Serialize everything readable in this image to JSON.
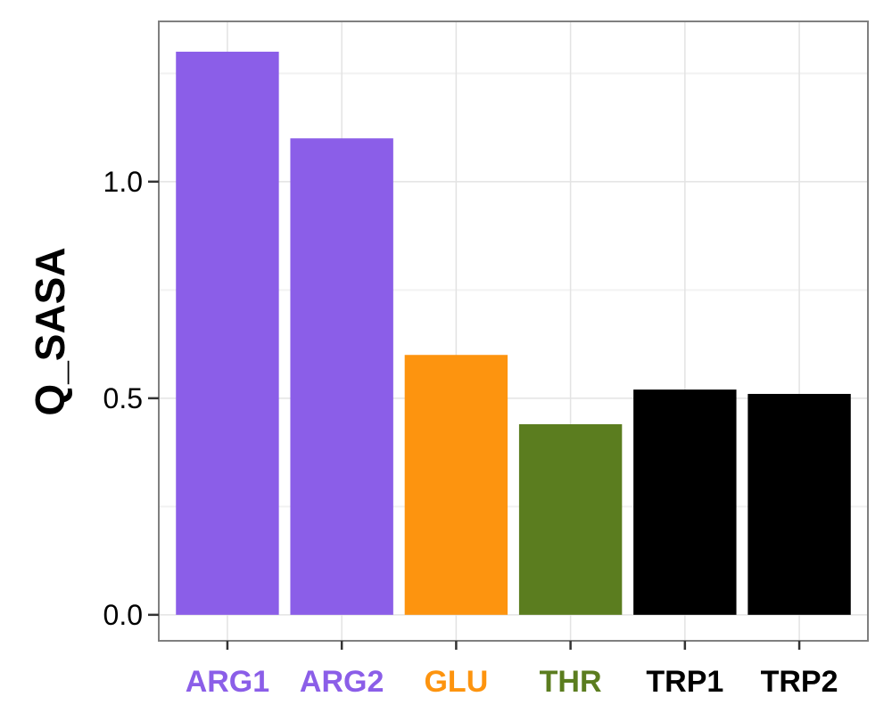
{
  "chart_data": {
    "type": "bar",
    "categories": [
      "ARG1",
      "ARG2",
      "GLU",
      "THR",
      "TRP1",
      "TRP2"
    ],
    "values": [
      1.3,
      1.1,
      0.6,
      0.44,
      0.52,
      0.51
    ],
    "bar_colors": [
      "#8b5ee8",
      "#8b5ee8",
      "#fd940f",
      "#5b7d1f",
      "#000000",
      "#000000"
    ],
    "title": "",
    "xlabel": "",
    "ylabel": "Q_SASA",
    "ylim": [
      -0.06,
      1.37
    ],
    "yticks": [
      0.0,
      0.5,
      1.0
    ],
    "ytick_labels": [
      "0.0",
      "0.5",
      "1.0"
    ],
    "grid": true,
    "legend": "none"
  }
}
